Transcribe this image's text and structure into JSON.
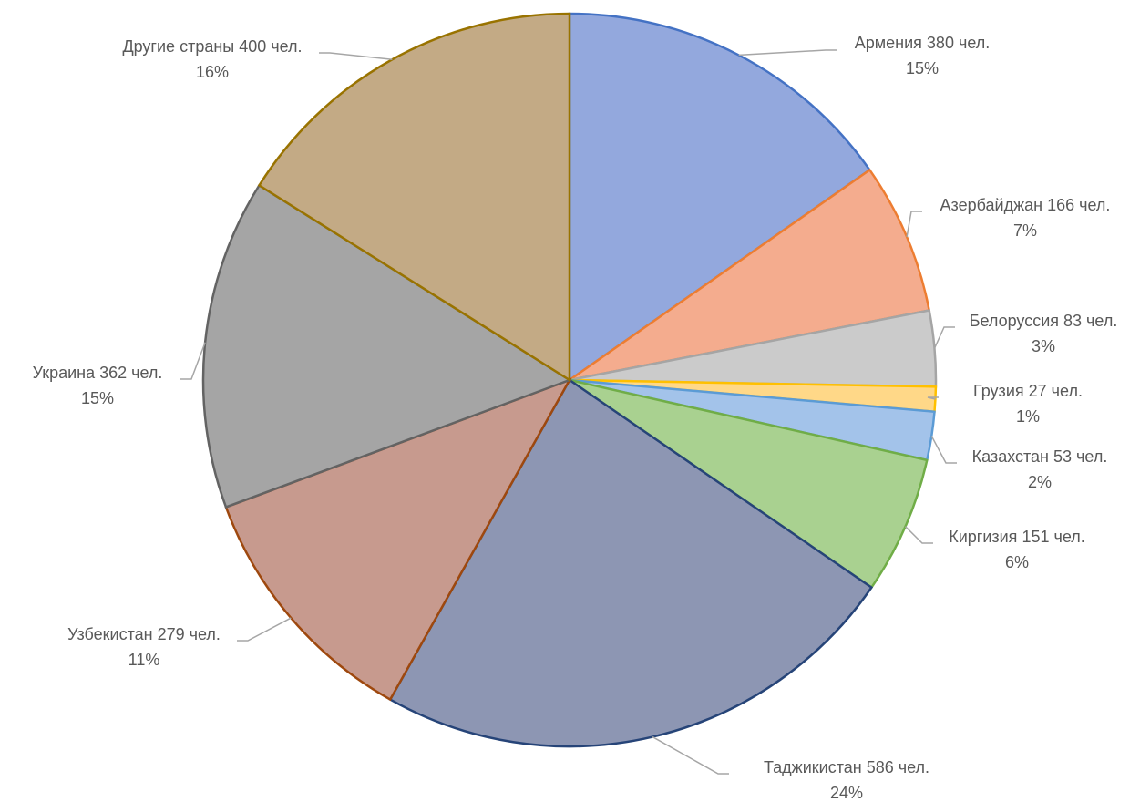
{
  "chart_data": {
    "type": "pie",
    "categories": [
      "Армения",
      "Азербайджан",
      "Белоруссия",
      "Грузия",
      "Казахстан",
      "Киргизия",
      "Таджикистан",
      "Узбекистан",
      "Украина",
      "Другие страны"
    ],
    "values": [
      380,
      166,
      83,
      27,
      53,
      151,
      586,
      279,
      362,
      400
    ],
    "value_labels": [
      "380 чел.",
      "166 чел.",
      "83 чел.",
      "27 чел.",
      "53 чел.",
      "151 чел.",
      "586 чел.",
      "279 чел.",
      "362 чел.",
      "400 чел."
    ],
    "percent_labels": [
      "15%",
      "7%",
      "3%",
      "1%",
      "2%",
      "6%",
      "24%",
      "11%",
      "15%",
      "16%"
    ],
    "colors": [
      "#93a8dd",
      "#f4ac8e",
      "#cbcbcb",
      "#ffd888",
      "#a3c3ea",
      "#a9d190",
      "#8d96b3",
      "#c79a8e",
      "#a5a5a5",
      "#c3aa85"
    ],
    "edge_colors": [
      "#4472c4",
      "#ed7d31",
      "#a5a5a5",
      "#ffc000",
      "#5b9bd5",
      "#70ad47",
      "#264478",
      "#9e480e",
      "#636363",
      "#997300"
    ]
  }
}
